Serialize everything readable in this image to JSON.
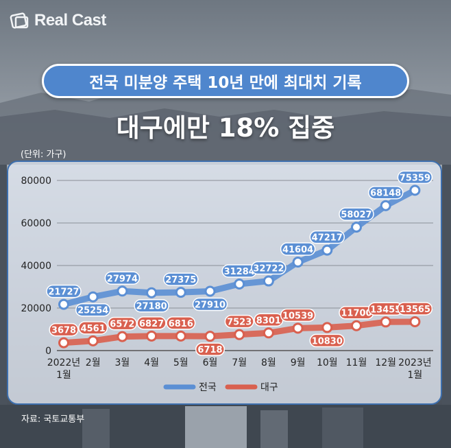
{
  "brand": {
    "name": "Real Cast"
  },
  "header": {
    "title_pill": "전국 미분양 주택 10년 만에 최대치 기록",
    "headline": "대구에만 18% 집중",
    "unit_label": "(단위: 가구)"
  },
  "source": "자료: 국토교통부",
  "chart_data": {
    "type": "line",
    "categories": [
      [
        "2022년",
        "1월"
      ],
      [
        "2월"
      ],
      [
        "3월"
      ],
      [
        "4월"
      ],
      [
        "5월"
      ],
      [
        "6월"
      ],
      [
        "7월"
      ],
      [
        "8월"
      ],
      [
        "9월"
      ],
      [
        "10월"
      ],
      [
        "11월"
      ],
      [
        "12월"
      ],
      [
        "2023년",
        "1월"
      ]
    ],
    "series": [
      {
        "name": "전국",
        "color": "#5b8fd4",
        "values": [
          21727,
          25254,
          27974,
          27180,
          27375,
          27910,
          31284,
          32722,
          41604,
          47217,
          58027,
          68148,
          75359
        ]
      },
      {
        "name": "대구",
        "color": "#d9604f",
        "values": [
          3678,
          4561,
          6572,
          6827,
          6816,
          6718,
          7523,
          8301,
          10539,
          10830,
          11700,
          13455,
          13565
        ]
      }
    ],
    "ylim": [
      0,
      80000
    ],
    "yticks": [
      0,
      20000,
      40000,
      60000,
      80000
    ],
    "grid": true,
    "legend": "bottom"
  }
}
